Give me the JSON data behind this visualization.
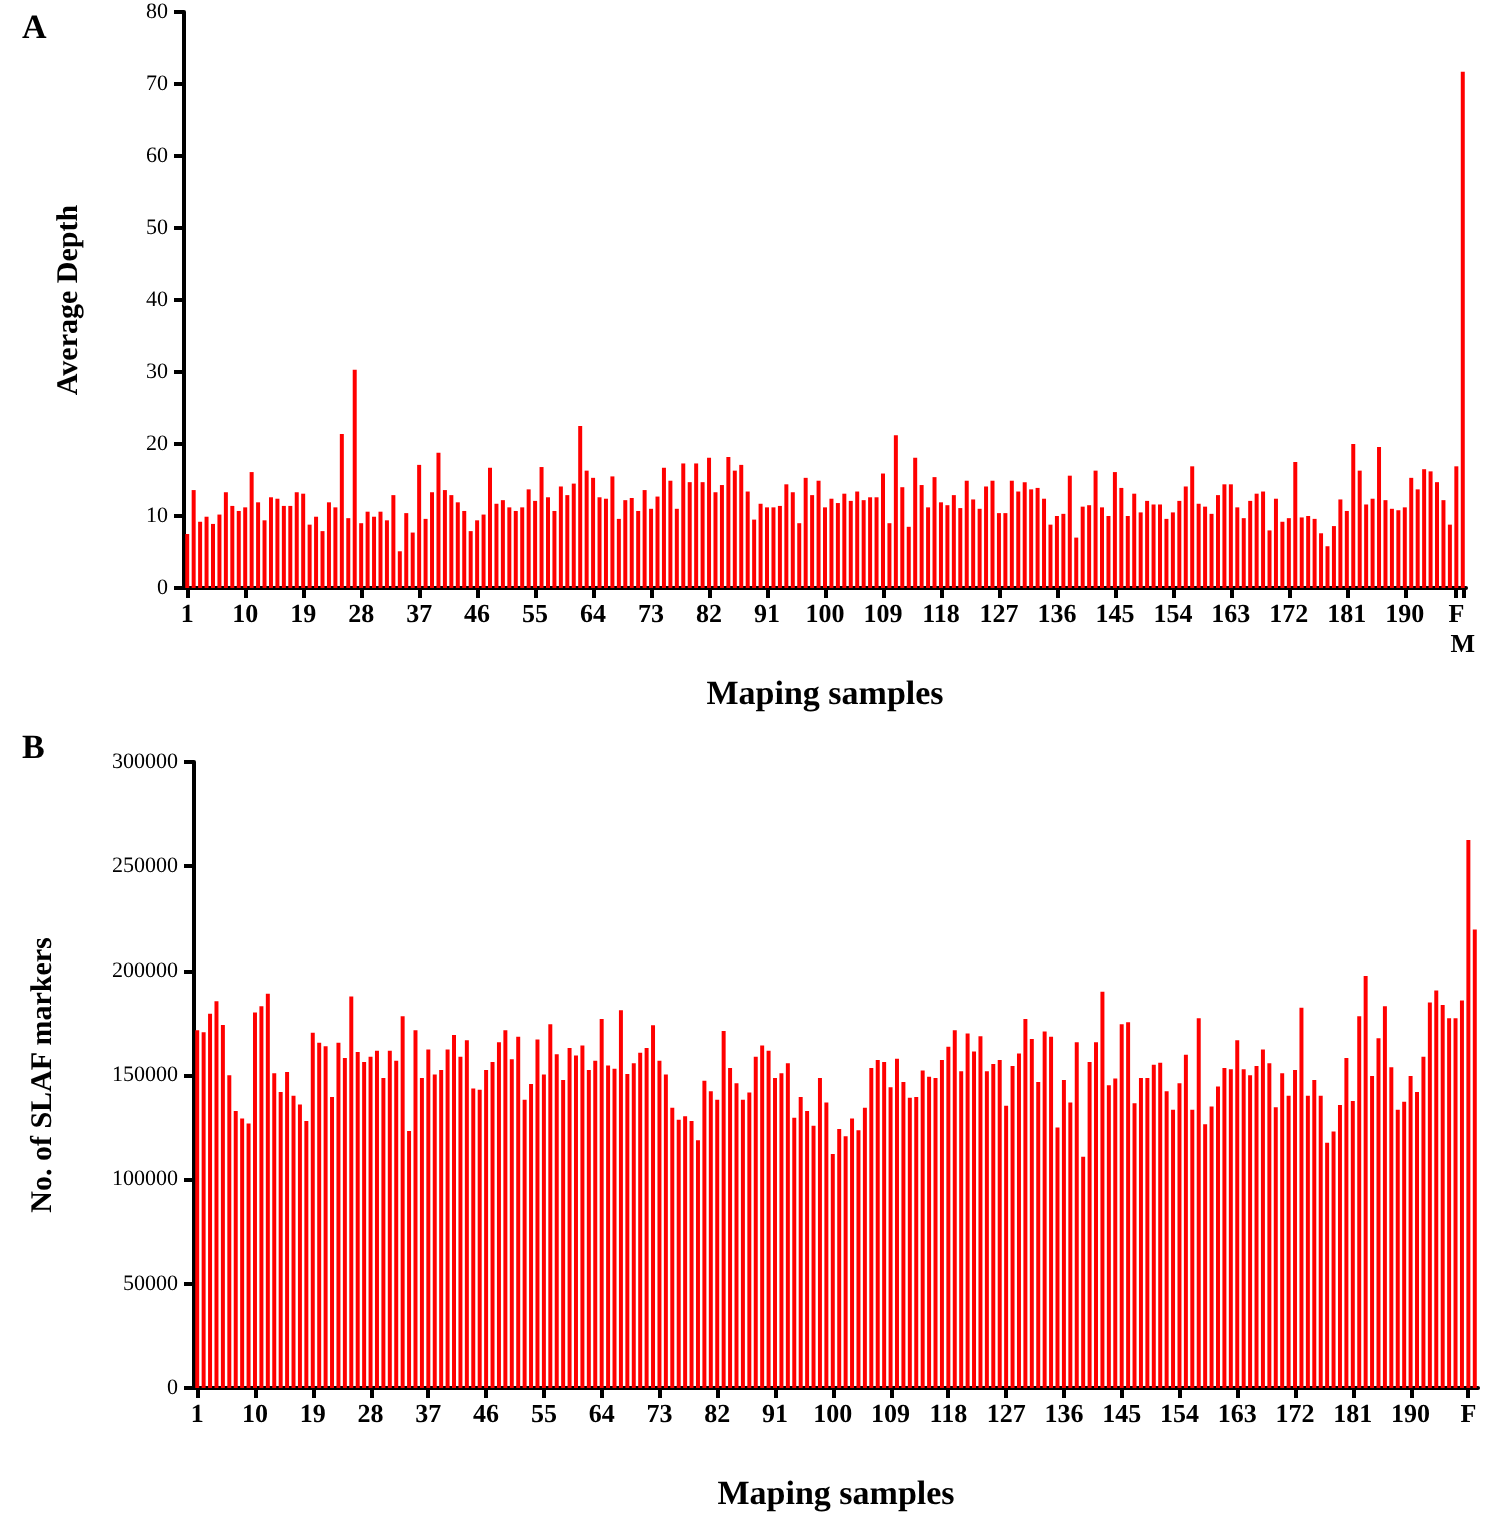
{
  "chart_data": [
    {
      "type": "bar",
      "title": "A",
      "xlabel": "Maping samples",
      "ylabel": "Average Depth",
      "color": "#ff0000",
      "ylim": [
        0,
        80
      ],
      "yticks": [
        0,
        10,
        20,
        30,
        40,
        50,
        60,
        70,
        80
      ],
      "categories": [
        "1",
        null,
        null,
        null,
        null,
        null,
        null,
        null,
        null,
        "10",
        null,
        null,
        null,
        null,
        null,
        null,
        null,
        null,
        "19",
        null,
        null,
        null,
        null,
        null,
        null,
        null,
        null,
        "28",
        null,
        null,
        null,
        null,
        null,
        null,
        null,
        null,
        "37",
        null,
        null,
        null,
        null,
        null,
        null,
        null,
        null,
        "46",
        null,
        null,
        null,
        null,
        null,
        null,
        null,
        null,
        "55",
        null,
        null,
        null,
        null,
        null,
        null,
        null,
        null,
        "64",
        null,
        null,
        null,
        null,
        null,
        null,
        null,
        null,
        "73",
        null,
        null,
        null,
        null,
        null,
        null,
        null,
        null,
        "82",
        null,
        null,
        null,
        null,
        null,
        null,
        null,
        null,
        "91",
        null,
        null,
        null,
        null,
        null,
        null,
        null,
        null,
        "100",
        null,
        null,
        null,
        null,
        null,
        null,
        null,
        null,
        "109",
        null,
        null,
        null,
        null,
        null,
        null,
        null,
        null,
        "118",
        null,
        null,
        null,
        null,
        null,
        null,
        null,
        null,
        "127",
        null,
        null,
        null,
        null,
        null,
        null,
        null,
        null,
        "136",
        null,
        null,
        null,
        null,
        null,
        null,
        null,
        null,
        "145",
        null,
        null,
        null,
        null,
        null,
        null,
        null,
        null,
        "154",
        null,
        null,
        null,
        null,
        null,
        null,
        null,
        null,
        "163",
        null,
        null,
        null,
        null,
        null,
        null,
        null,
        null,
        "172",
        null,
        null,
        null,
        null,
        null,
        null,
        null,
        null,
        "181",
        null,
        null,
        null,
        null,
        null,
        null,
        null,
        null,
        "190",
        null,
        null,
        null,
        null,
        null,
        null,
        null,
        "F",
        "M"
      ],
      "values": [
        7.5,
        13.6,
        9.2,
        9.9,
        8.9,
        10.2,
        13.3,
        11.4,
        10.7,
        11.2,
        16.1,
        11.9,
        9.4,
        12.6,
        12.4,
        11.4,
        11.4,
        13.3,
        13.1,
        8.8,
        9.9,
        7.9,
        11.9,
        11.2,
        21.4,
        9.7,
        30.3,
        9,
        10.6,
        9.9,
        10.6,
        9.4,
        12.9,
        5.1,
        10.4,
        7.7,
        17.1,
        9.6,
        13.3,
        18.8,
        13.6,
        12.9,
        11.9,
        10.7,
        7.9,
        9.4,
        10.2,
        16.7,
        11.7,
        12.2,
        11.2,
        10.7,
        11.2,
        13.7,
        12.1,
        16.8,
        12.6,
        10.7,
        14.1,
        12.9,
        14.5,
        22.5,
        16.3,
        15.3,
        12.6,
        12.4,
        15.5,
        9.6,
        12.2,
        12.5,
        10.7,
        13.6,
        11,
        12.7,
        16.7,
        14.9,
        11,
        17.3,
        14.7,
        17.3,
        14.7,
        18.1,
        13.3,
        14.3,
        18.2,
        16.3,
        17.1,
        13.4,
        9.5,
        11.7,
        11.2,
        11.2,
        11.4,
        14.4,
        13.3,
        9,
        15.3,
        12.9,
        14.9,
        11.2,
        12.4,
        11.8,
        13.1,
        12.1,
        13.4,
        12.2,
        12.6,
        12.6,
        15.9,
        9,
        21.2,
        14,
        8.5,
        18.1,
        14.3,
        11.2,
        15.4,
        11.9,
        11.5,
        12.9,
        11.1,
        14.9,
        12.3,
        11,
        14.1,
        14.9,
        10.4,
        10.4,
        14.9,
        13.4,
        14.7,
        13.7,
        13.9,
        12.4,
        8.8,
        10,
        10.3,
        15.6,
        7,
        11.3,
        11.5,
        16.3,
        11.2,
        10,
        16.1,
        13.9,
        10,
        13.1,
        10.5,
        12.1,
        11.6,
        11.6,
        9.6,
        10.5,
        12.1,
        14.1,
        16.9,
        11.7,
        11.3,
        10.3,
        12.9,
        14.4,
        14.4,
        11.2,
        9.7,
        12.1,
        13.1,
        13.4,
        8,
        12.4,
        9.2,
        9.7,
        17.5,
        9.8,
        10,
        9.6,
        7.6,
        5.8,
        8.6,
        12.3,
        10.7,
        20,
        16.3,
        11.6,
        12.4,
        19.6,
        12.2,
        11,
        10.8,
        11.2,
        15.3,
        13.7,
        16.5,
        16.2,
        14.7,
        12.2,
        8.8,
        16.9,
        71.7
      ]
    },
    {
      "type": "bar",
      "title": "B",
      "xlabel": "Maping samples",
      "ylabel": "No. of SLAF markers",
      "color": "#ff0000",
      "ylim": [
        0,
        300000
      ],
      "yticks": [
        0,
        50000,
        100000,
        150000,
        200000,
        250000,
        300000
      ],
      "categories": [
        "1",
        null,
        null,
        null,
        null,
        null,
        null,
        null,
        null,
        "10",
        null,
        null,
        null,
        null,
        null,
        null,
        null,
        null,
        "19",
        null,
        null,
        null,
        null,
        null,
        null,
        null,
        null,
        "28",
        null,
        null,
        null,
        null,
        null,
        null,
        null,
        null,
        "37",
        null,
        null,
        null,
        null,
        null,
        null,
        null,
        null,
        "46",
        null,
        null,
        null,
        null,
        null,
        null,
        null,
        null,
        "55",
        null,
        null,
        null,
        null,
        null,
        null,
        null,
        null,
        "64",
        null,
        null,
        null,
        null,
        null,
        null,
        null,
        null,
        "73",
        null,
        null,
        null,
        null,
        null,
        null,
        null,
        null,
        "82",
        null,
        null,
        null,
        null,
        null,
        null,
        null,
        null,
        "91",
        null,
        null,
        null,
        null,
        null,
        null,
        null,
        null,
        "100",
        null,
        null,
        null,
        null,
        null,
        null,
        null,
        null,
        "109",
        null,
        null,
        null,
        null,
        null,
        null,
        null,
        null,
        "118",
        null,
        null,
        null,
        null,
        null,
        null,
        null,
        null,
        "127",
        null,
        null,
        null,
        null,
        null,
        null,
        null,
        null,
        "136",
        null,
        null,
        null,
        null,
        null,
        null,
        null,
        null,
        "145",
        null,
        null,
        null,
        null,
        null,
        null,
        null,
        null,
        "154",
        null,
        null,
        null,
        null,
        null,
        null,
        null,
        null,
        "163",
        null,
        null,
        null,
        null,
        null,
        null,
        null,
        null,
        "172",
        null,
        null,
        null,
        null,
        null,
        null,
        null,
        null,
        "181",
        null,
        null,
        null,
        null,
        null,
        null,
        null,
        null,
        "190",
        null,
        null,
        null,
        null,
        null,
        null,
        null,
        null,
        "F",
        null
      ],
      "values": [
        171400,
        170500,
        179400,
        185400,
        174000,
        149900,
        132700,
        129200,
        126700,
        180000,
        182900,
        188900,
        150800,
        141900,
        151400,
        140000,
        135900,
        128000,
        170200,
        165400,
        163800,
        139400,
        165400,
        158100,
        187600,
        161000,
        156200,
        158800,
        161600,
        148600,
        161600,
        156800,
        178100,
        123200,
        171400,
        148600,
        162200,
        150200,
        152400,
        162200,
        169200,
        158800,
        166700,
        143500,
        142900,
        152400,
        156200,
        165700,
        171400,
        157500,
        168300,
        138100,
        145700,
        167000,
        150200,
        174300,
        160000,
        147600,
        162900,
        159400,
        164100,
        152400,
        156800,
        176800,
        154600,
        153000,
        181000,
        150500,
        155600,
        160700,
        162900,
        173900,
        156800,
        150200,
        134300,
        128600,
        130200,
        128000,
        118700,
        147300,
        142200,
        138100,
        171100,
        153400,
        146100,
        138100,
        141600,
        158800,
        164100,
        161600,
        148600,
        150800,
        155600,
        129500,
        139400,
        132700,
        125700,
        148600,
        136800,
        112100,
        124100,
        120600,
        129200,
        123500,
        134300,
        153400,
        157200,
        156200,
        144100,
        157800,
        146700,
        139100,
        139400,
        152100,
        149200,
        148600,
        157200,
        163500,
        171400,
        151800,
        169900,
        161300,
        168600,
        151800,
        155300,
        157200,
        135300,
        154300,
        160300,
        176800,
        167300,
        146700,
        170800,
        168300,
        124800,
        147600,
        136800,
        165700,
        110800,
        156200,
        165700,
        189900,
        145100,
        148300,
        174300,
        175300,
        136500,
        148600,
        148600,
        154900,
        155900,
        142200,
        133400,
        146100,
        159700,
        133400,
        177200,
        126400,
        134900,
        144500,
        153400,
        152700,
        166700,
        152700,
        149900,
        154300,
        162200,
        155600,
        134600,
        150800,
        140000,
        152400,
        182200,
        140000,
        147600,
        140000,
        117500,
        122900,
        135600,
        158100,
        137500,
        178100,
        197500,
        149500,
        167600,
        182900,
        153700,
        133400,
        137200,
        149500,
        141900,
        158800,
        184800,
        190500,
        183500,
        177200,
        177200,
        185700,
        262600,
        219700
      ]
    }
  ]
}
